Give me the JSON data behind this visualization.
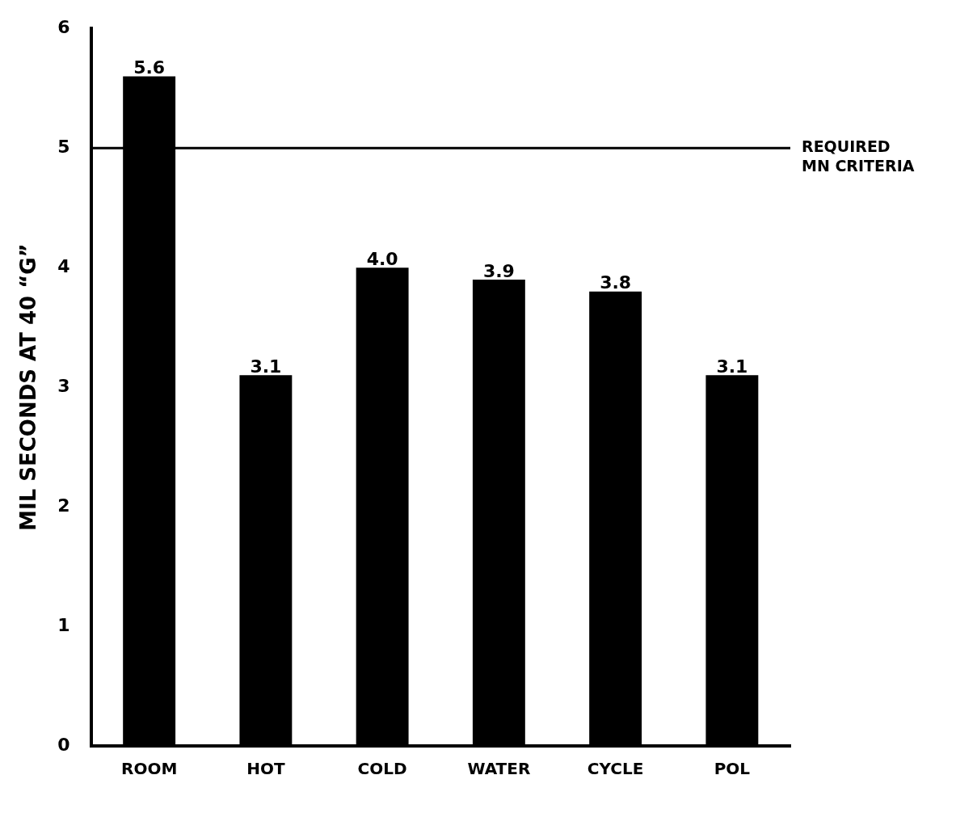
{
  "chart_data": {
    "type": "bar",
    "ylabel": "MIL SECONDS AT 40 “G”",
    "categories": [
      "ROOM",
      "HOT",
      "COLD",
      "WATER",
      "CYCLE",
      "POL"
    ],
    "values": [
      5.6,
      3.1,
      4.0,
      3.9,
      3.8,
      3.1
    ],
    "color": "#000000",
    "ylim": [
      0,
      6
    ],
    "yticks": [
      0,
      1,
      2,
      3,
      4,
      5,
      6
    ],
    "grid": false,
    "legend": false,
    "value_labels": [
      "5.6",
      "3.1",
      "4.0",
      "3.9",
      "3.8",
      "3.1"
    ],
    "ref_lines": [
      {
        "axis": "y",
        "value": 5,
        "label": "REQUIRED MN CRITERIA",
        "color": "#000000"
      }
    ]
  }
}
